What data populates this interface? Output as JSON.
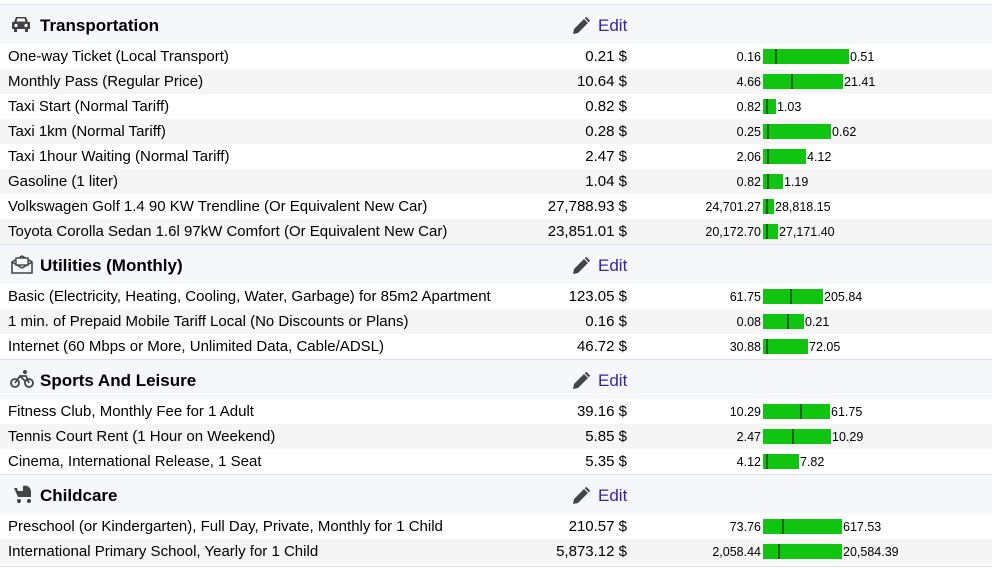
{
  "sections": [
    {
      "title": "Transportation",
      "edit": "Edit",
      "rows": [
        {
          "item": "One-way Ticket (Local Transport)",
          "price": "0.21 $",
          "min": "0.16",
          "max": "0.51"
        },
        {
          "item": "Monthly Pass (Regular Price)",
          "price": "10.64 $",
          "min": "4.66",
          "max": "21.41"
        },
        {
          "item": "Taxi Start (Normal Tariff)",
          "price": "0.82 $",
          "min": "0.82",
          "max": "1.03"
        },
        {
          "item": "Taxi 1km (Normal Tariff)",
          "price": "0.28 $",
          "min": "0.25",
          "max": "0.62"
        },
        {
          "item": "Taxi 1hour Waiting (Normal Tariff)",
          "price": "2.47 $",
          "min": "2.06",
          "max": "4.12"
        },
        {
          "item": "Gasoline (1 liter)",
          "price": "1.04 $",
          "min": "0.82",
          "max": "1.19"
        },
        {
          "item": "Volkswagen Golf 1.4 90 KW Trendline (Or Equivalent New Car)",
          "price": "27,788.93 $",
          "min": "24,701.27",
          "max": "28,818.15"
        },
        {
          "item": "Toyota Corolla Sedan 1.6l 97kW Comfort (Or Equivalent New Car)",
          "price": "23,851.01 $",
          "min": "20,172.70",
          "max": "27,171.40"
        }
      ]
    },
    {
      "title": "Utilities (Monthly)",
      "edit": "Edit",
      "rows": [
        {
          "item": "Basic (Electricity, Heating, Cooling, Water, Garbage) for 85m2 Apartment",
          "price": "123.05 $",
          "min": "61.75",
          "max": "205.84"
        },
        {
          "item": "1 min. of Prepaid Mobile Tariff Local (No Discounts or Plans)",
          "price": "0.16 $",
          "min": "0.08",
          "max": "0.21"
        },
        {
          "item": "Internet (60 Mbps or More, Unlimited Data, Cable/ADSL)",
          "price": "46.72 $",
          "min": "30.88",
          "max": "72.05"
        }
      ]
    },
    {
      "title": "Sports And Leisure",
      "edit": "Edit",
      "rows": [
        {
          "item": "Fitness Club, Monthly Fee for 1 Adult",
          "price": "39.16 $",
          "min": "10.29",
          "max": "61.75"
        },
        {
          "item": "Tennis Court Rent (1 Hour on Weekend)",
          "price": "5.85 $",
          "min": "2.47",
          "max": "10.29"
        },
        {
          "item": "Cinema, International Release, 1 Seat",
          "price": "5.35 $",
          "min": "4.12",
          "max": "7.82"
        }
      ]
    },
    {
      "title": "Childcare",
      "edit": "Edit",
      "rows": [
        {
          "item": "Preschool (or Kindergarten), Full Day, Private, Monthly for 1 Child",
          "price": "210.57 $",
          "min": "73.76",
          "max": "617.53"
        },
        {
          "item": "International Primary School, Yearly for 1 Child",
          "price": "5,873.12 $",
          "min": "2,058.44",
          "max": "20,584.39"
        }
      ]
    }
  ]
}
